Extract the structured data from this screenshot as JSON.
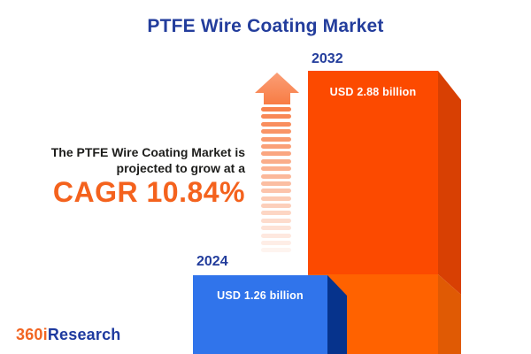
{
  "header": {
    "title": "PTFE Wire Coating Market"
  },
  "annotation": {
    "line1": "The PTFE Wire Coating Market is",
    "line2": "projected to grow at a",
    "cagr": "CAGR 10.84%"
  },
  "bars": [
    {
      "year": "2024",
      "value_label": "USD 1.26 billion"
    },
    {
      "year": "2032",
      "value_label": "USD 2.88 billion"
    }
  ],
  "logo": {
    "prefix": "360i",
    "suffix": "Research"
  },
  "colors": {
    "title_blue": "#233D9C",
    "cagr_orange": "#F4621D",
    "bar_2024_face": "#3074EB",
    "bar_2024_side": "#06338C",
    "bar_2032_face_upper": "#FC4A00",
    "bar_2032_face_lower": "#FF6200",
    "bar_2032_side_upper": "#D84003",
    "bar_2032_side_lower": "#E05A04",
    "arrow_orange": "#F8824D",
    "label_text": "#FFFFFF"
  },
  "chart_data": {
    "type": "bar",
    "title": "PTFE Wire Coating Market",
    "categories": [
      "2024",
      "2032"
    ],
    "values": [
      1.26,
      2.88
    ],
    "value_unit": "USD billion",
    "data_labels": [
      "USD 1.26 billion",
      "USD 2.88 billion"
    ],
    "annotation": "The PTFE Wire Coating Market is projected to grow at a CAGR 10.84%",
    "cagr_percent": 10.84,
    "series_colors": {
      "2024": "#3074EB",
      "2032": "#FC4A00"
    },
    "style": "3d-columns",
    "legend": false,
    "grid": false,
    "axes": false
  }
}
